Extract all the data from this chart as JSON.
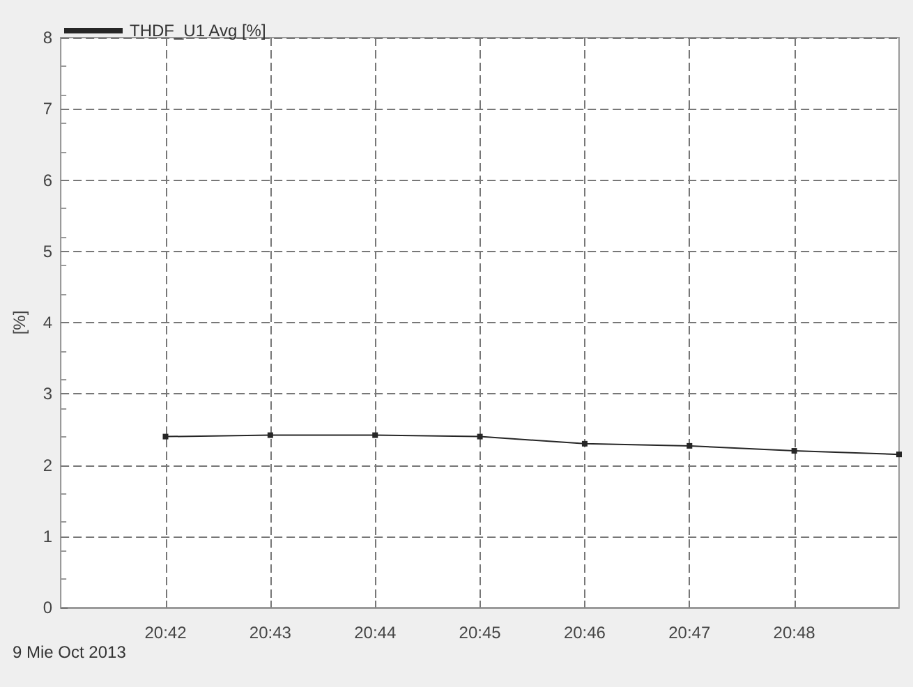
{
  "chart_data": {
    "type": "line",
    "ylabel": "[%]",
    "annotations": [
      "9 Mie Oct 2013"
    ],
    "x": [
      "2013-10-09T20:42",
      "2013-10-09T20:43",
      "2013-10-09T20:44",
      "2013-10-09T20:45",
      "2013-10-09T20:46",
      "2013-10-09T20:47",
      "2013-10-09T20:48",
      "2013-10-09T20:49"
    ],
    "series": [
      {
        "name": "THDF_U1 Avg [%]",
        "color": "#262626",
        "values": [
          2.4,
          2.42,
          2.42,
          2.4,
          2.3,
          2.27,
          2.2,
          2.15
        ]
      }
    ],
    "xlim": [
      "2013-10-09T20:41",
      "2013-10-09T20:49"
    ],
    "xticks": [
      {
        "value": "2013-10-09T20:42",
        "label": "20:42"
      },
      {
        "value": "2013-10-09T20:43",
        "label": "20:43"
      },
      {
        "value": "2013-10-09T20:44",
        "label": "20:44"
      },
      {
        "value": "2013-10-09T20:45",
        "label": "20:45"
      },
      {
        "value": "2013-10-09T20:46",
        "label": "20:46"
      },
      {
        "value": "2013-10-09T20:47",
        "label": "20:47"
      },
      {
        "value": "2013-10-09T20:48",
        "label": "20:48"
      }
    ],
    "ylim": [
      0,
      8
    ],
    "yticks": [
      0,
      1,
      2,
      3,
      4,
      5,
      6,
      7,
      8
    ],
    "grid": true,
    "legend": "top left",
    "marker": "square",
    "line_style": "solid"
  }
}
